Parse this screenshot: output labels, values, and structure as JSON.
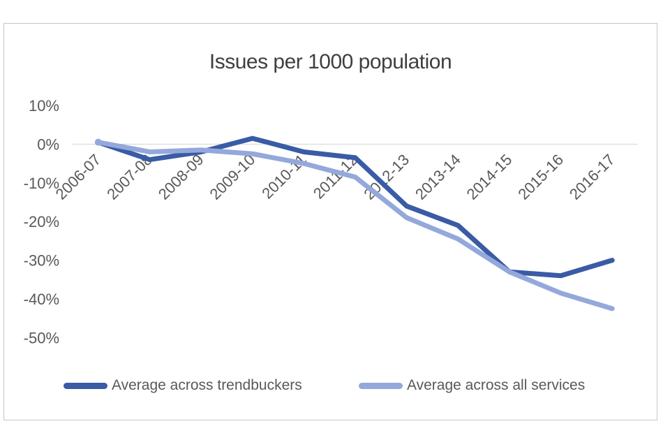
{
  "title": "Issues per 1000 population",
  "legend": [
    {
      "label": "Average across trendbuckers",
      "color": "#3a5ba5"
    },
    {
      "label": "Average across all services",
      "color": "#94a8db"
    }
  ],
  "colors": {
    "series_dark_blue": "#3a5ba5",
    "series_light_blue": "#94a8db",
    "axis_text": "#595959",
    "title_text": "#3f3f3f",
    "gridline": "#d4d4d4",
    "frame_border": "#c6c6c6",
    "background": "#ffffff"
  },
  "chart_data": {
    "type": "line",
    "title": "Issues per 1000 population",
    "categories": [
      "2006-07",
      "2007-08",
      "2008-09",
      "2009-10",
      "2010-11",
      "2011-12",
      "2012-13",
      "2013-14",
      "2014-15",
      "2015-16",
      "2016-17"
    ],
    "series": [
      {
        "name": "Average across trendbuckers",
        "color": "#3a5ba5",
        "values": [
          0.5,
          -4,
          -2,
          1.5,
          -2,
          -3.5,
          -16,
          -21,
          -33,
          -34,
          -30
        ]
      },
      {
        "name": "Average across all services",
        "color": "#94a8db",
        "values": [
          0.5,
          -2,
          -1.5,
          -2.5,
          -5,
          -8.5,
          -19,
          -24.5,
          -33,
          -38.5,
          -42.5
        ]
      }
    ],
    "xlabel": "",
    "ylabel": "",
    "ylim": [
      -55,
      12
    ],
    "yticks": [
      10,
      0,
      -10,
      -20,
      -30,
      -40,
      -50
    ],
    "ytick_format": "percent",
    "xtick_rotation_deg": 45,
    "gridlines": "zero-axis-only",
    "legend_position": "bottom",
    "markers": "start-point-only"
  }
}
